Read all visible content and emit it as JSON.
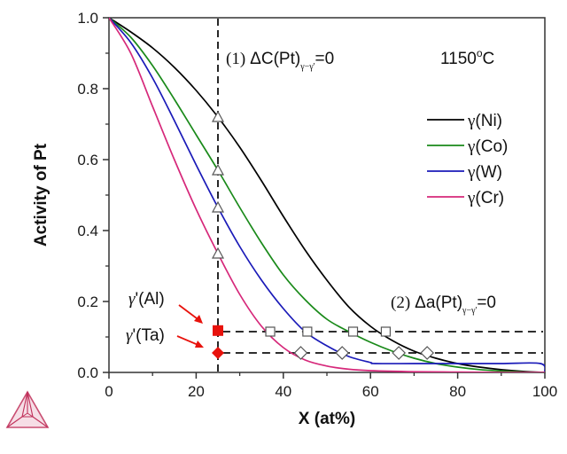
{
  "chart_data": {
    "type": "line",
    "title": "",
    "xlabel": "X (at%)",
    "ylabel": "Activity of Pt",
    "xlim": [
      0,
      100
    ],
    "ylim": [
      0,
      1.0
    ],
    "x_ticks": [
      0,
      20,
      40,
      60,
      80,
      100
    ],
    "x_tick_labels": [
      "0",
      "20",
      "40",
      "60",
      "80",
      "100"
    ],
    "y_ticks": [
      0.0,
      0.2,
      0.4,
      0.6,
      0.8,
      1.0
    ],
    "y_tick_labels": [
      "0.0",
      "0.2",
      "0.4",
      "0.6",
      "0.8",
      "1.0"
    ],
    "grid": false,
    "legend_position": "top-right",
    "series": [
      {
        "name": "γ(Ni)",
        "color": "#000000",
        "x": [
          0,
          5,
          10,
          15,
          20,
          25,
          30,
          35,
          40,
          45,
          50,
          55,
          60,
          65,
          70,
          75,
          80,
          85,
          90,
          95,
          100
        ],
        "y": [
          1.0,
          0.96,
          0.915,
          0.86,
          0.795,
          0.72,
          0.635,
          0.54,
          0.44,
          0.345,
          0.26,
          0.185,
          0.13,
          0.09,
          0.06,
          0.04,
          0.025,
          0.015,
          0.008,
          0.003,
          0.0
        ]
      },
      {
        "name": "γ(Co)",
        "color": "#1a8a1a",
        "x": [
          0,
          5,
          10,
          15,
          20,
          25,
          30,
          35,
          40,
          45,
          50,
          55,
          60,
          65,
          70,
          75,
          80,
          85,
          90,
          95,
          100
        ],
        "y": [
          1.0,
          0.945,
          0.865,
          0.77,
          0.67,
          0.57,
          0.465,
          0.365,
          0.275,
          0.205,
          0.15,
          0.115,
          0.085,
          0.06,
          0.04,
          0.025,
          0.015,
          0.008,
          0.004,
          0.001,
          0.0
        ]
      },
      {
        "name": "γ(W)",
        "color": "#1a1ab8",
        "x": [
          0,
          5,
          10,
          15,
          20,
          25,
          30,
          35,
          40,
          45,
          50,
          55,
          60,
          61,
          70,
          80,
          90,
          99,
          100
        ],
        "y": [
          1.0,
          0.93,
          0.83,
          0.71,
          0.585,
          0.465,
          0.355,
          0.26,
          0.18,
          0.115,
          0.075,
          0.045,
          0.028,
          0.025,
          0.025,
          0.025,
          0.025,
          0.025,
          0.0
        ]
      },
      {
        "name": "γ(Cr)",
        "color": "#d6287a",
        "x": [
          0,
          5,
          10,
          15,
          20,
          25,
          30,
          35,
          40,
          45,
          50,
          55,
          60,
          70,
          80,
          90,
          100
        ],
        "y": [
          1.0,
          0.9,
          0.75,
          0.6,
          0.46,
          0.335,
          0.22,
          0.13,
          0.07,
          0.035,
          0.018,
          0.009,
          0.005,
          0.002,
          0.001,
          0.0,
          0.0
        ]
      }
    ],
    "markers": {
      "triangles": [
        {
          "x": 25,
          "y": 0.72
        },
        {
          "x": 25,
          "y": 0.57
        },
        {
          "x": 25,
          "y": 0.465
        },
        {
          "x": 25,
          "y": 0.335
        }
      ],
      "squares": [
        {
          "x": 37,
          "y": 0.115
        },
        {
          "x": 45.5,
          "y": 0.115
        },
        {
          "x": 56,
          "y": 0.115
        },
        {
          "x": 63.5,
          "y": 0.115
        }
      ],
      "diamonds": [
        {
          "x": 44,
          "y": 0.055
        },
        {
          "x": 53.5,
          "y": 0.055
        },
        {
          "x": 66.5,
          "y": 0.055
        },
        {
          "x": 73,
          "y": 0.055
        }
      ],
      "red_square": {
        "x": 25,
        "y": 0.118,
        "label": "γ'(Al)",
        "color": "#e8120c"
      },
      "red_diamond": {
        "x": 25,
        "y": 0.055,
        "label": "γ'(Ta)",
        "color": "#e8120c"
      }
    },
    "reference_lines": {
      "vertical_x": 25,
      "horizontal_y": [
        0.115,
        0.055
      ],
      "horizontal_x_start": 26
    },
    "annotations": {
      "condition1_prefix": "(1)",
      "condition1_main": "ΔC(Pt)",
      "condition1_sub": "γ−γ'",
      "condition1_suffix": "=0",
      "condition2_prefix": "(2)",
      "condition2_main": "Δa(Pt)",
      "condition2_sub": "γ−γ'",
      "condition2_suffix": "=0",
      "temperature": "1150",
      "temperature_unit_sup": "o",
      "temperature_unit": "C",
      "al_label": "γ'(Al)",
      "ta_label": "γ'(Ta)"
    }
  },
  "logo": {
    "name": "thermo-calc-logo",
    "color": "#c0305a"
  }
}
